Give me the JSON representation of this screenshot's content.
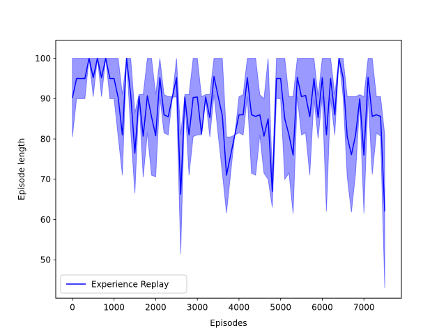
{
  "chart_data": {
    "type": "line",
    "title": "",
    "xlabel": "Episodes",
    "ylabel": "Episode length",
    "xlim": [
      -400,
      7900
    ],
    "ylim": [
      40.5,
      104.5
    ],
    "xticks": [
      0,
      1000,
      2000,
      3000,
      4000,
      5000,
      6000,
      7000
    ],
    "yticks": [
      50,
      60,
      70,
      80,
      90,
      100
    ],
    "grid": false,
    "legend": {
      "position": "lower-left"
    },
    "colors": {
      "line": "#0000ff",
      "band": "#0000ff",
      "band_opacity": 0.4
    },
    "series": [
      {
        "name": "Experience Replay",
        "x": [
          0,
          100,
          200,
          300,
          400,
          500,
          600,
          700,
          800,
          900,
          1000,
          1100,
          1200,
          1300,
          1400,
          1500,
          1600,
          1700,
          1800,
          1900,
          2000,
          2100,
          2200,
          2300,
          2400,
          2500,
          2600,
          2700,
          2800,
          2900,
          3000,
          3100,
          3200,
          3300,
          3400,
          3500,
          3600,
          3700,
          3800,
          3900,
          4000,
          4100,
          4200,
          4300,
          4400,
          4500,
          4600,
          4700,
          4800,
          4900,
          5000,
          5100,
          5200,
          5300,
          5400,
          5500,
          5600,
          5700,
          5800,
          5900,
          6000,
          6100,
          6200,
          6300,
          6400,
          6500,
          6600,
          6700,
          6800,
          6900,
          7000,
          7100,
          7200,
          7300,
          7400,
          7500
        ],
        "mean": [
          90.2,
          95.0,
          95.0,
          95.0,
          100.0,
          95.2,
          100.0,
          95.2,
          100.0,
          95.0,
          95.0,
          90.2,
          81.0,
          100.0,
          91.0,
          76.5,
          90.6,
          80.7,
          90.7,
          85.5,
          80.8,
          95.2,
          86.0,
          85.5,
          90.4,
          95.2,
          66.3,
          90.4,
          81.0,
          90.3,
          90.4,
          81.3,
          90.4,
          85.3,
          95.5,
          90.5,
          85.8,
          71.0,
          76.0,
          81.0,
          86.0,
          86.0,
          95.2,
          86.0,
          85.6,
          86.0,
          80.7,
          85.0,
          67.0,
          95.0,
          95.0,
          85.0,
          81.0,
          76.0,
          95.3,
          90.5,
          90.8,
          85.5,
          95.0,
          85.3,
          95.2,
          81.0,
          95.0,
          86.0,
          100.0,
          95.2,
          80.5,
          76.1,
          81.0,
          90.0,
          76.0,
          95.3,
          85.6,
          86.0,
          85.6,
          62.0
        ],
        "upper": [
          100.0,
          100.0,
          100.0,
          100.0,
          100.0,
          100.0,
          100.0,
          100.0,
          100.0,
          100.0,
          100.0,
          100.0,
          91.0,
          100.0,
          100.0,
          86.5,
          91.0,
          91.0,
          100.0,
          100.0,
          91.0,
          100.0,
          91.0,
          90.5,
          90.5,
          100.0,
          81.0,
          91.0,
          91.0,
          100.0,
          100.0,
          90.5,
          91.0,
          91.0,
          100.0,
          100.0,
          100.0,
          80.5,
          80.5,
          81.0,
          90.5,
          91.0,
          100.0,
          100.0,
          100.0,
          91.0,
          90.0,
          100.0,
          71.0,
          100.0,
          100.0,
          100.0,
          90.5,
          90.5,
          100.0,
          100.0,
          100.0,
          100.0,
          100.0,
          90.5,
          100.0,
          100.0,
          100.0,
          91.0,
          100.0,
          100.0,
          90.5,
          90.5,
          90.5,
          91.0,
          90.5,
          100.0,
          100.0,
          90.5,
          90.5,
          81.0
        ],
        "lower": [
          80.5,
          90.0,
          90.0,
          90.0,
          100.0,
          90.5,
          100.0,
          90.5,
          100.0,
          90.0,
          90.0,
          80.5,
          71.0,
          100.0,
          82.0,
          66.5,
          90.0,
          70.5,
          81.5,
          71.0,
          70.6,
          90.5,
          81.5,
          81.0,
          90.3,
          90.5,
          51.5,
          89.8,
          71.0,
          80.6,
          81.0,
          81.0,
          89.8,
          80.5,
          91.0,
          81.0,
          71.5,
          61.6,
          71.5,
          81.0,
          81.5,
          81.0,
          90.5,
          71.5,
          71.0,
          81.0,
          71.5,
          70.0,
          63.0,
          90.0,
          90.0,
          70.0,
          71.5,
          61.5,
          90.5,
          81.0,
          81.5,
          71.0,
          90.0,
          80.1,
          90.5,
          62.0,
          90.0,
          81.0,
          100.0,
          90.5,
          70.5,
          61.8,
          71.5,
          89.0,
          61.5,
          90.5,
          71.2,
          81.5,
          80.7,
          43.0
        ]
      }
    ]
  }
}
